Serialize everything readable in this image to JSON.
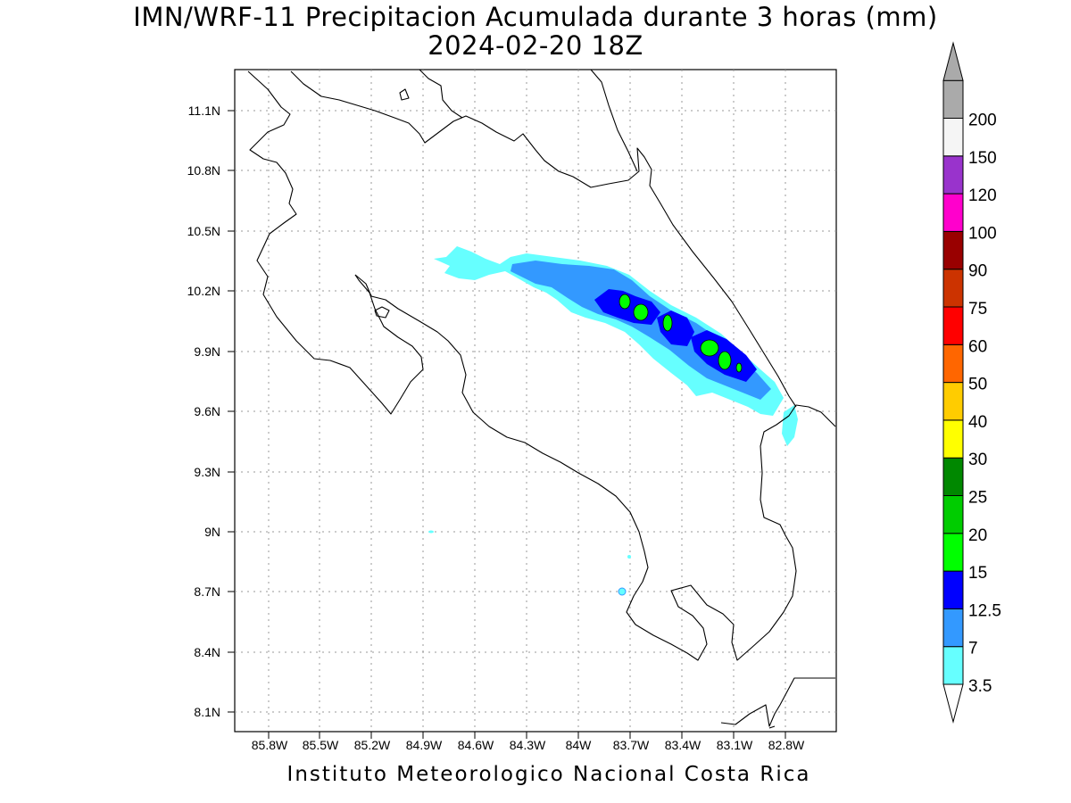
{
  "title_line1": "IMN/WRF-11 Precipitacion Acumulada durante 3 horas (mm)",
  "title_line2": "2024-02-20 18Z",
  "footer": "Instituto Meteorologico Nacional Costa Rica",
  "lat_labels": [
    "11.1N",
    "10.8N",
    "10.5N",
    "10.2N",
    "9.9N",
    "9.6N",
    "9.3N",
    "9N",
    "8.7N",
    "8.4N",
    "8.1N"
  ],
  "lon_labels": [
    "85.8W",
    "85.5W",
    "85.2W",
    "84.9W",
    "84.6W",
    "84.3W",
    "84W",
    "83.7W",
    "83.4W",
    "83.1W",
    "82.8W"
  ],
  "colorbar": {
    "labels": [
      "3.5",
      "7",
      "12.5",
      "15",
      "20",
      "25",
      "30",
      "40",
      "50",
      "60",
      "75",
      "90",
      "100",
      "120",
      "150",
      "200"
    ],
    "colors": [
      "#66ffff",
      "#3399ff",
      "#0000ff",
      "#00ff00",
      "#00cc00",
      "#008800",
      "#ffff00",
      "#ffcc00",
      "#ff6600",
      "#ff0000",
      "#cc3300",
      "#990000",
      "#ff00cc",
      "#9933cc",
      "#f5f5f5",
      "#aaaaaa"
    ]
  }
}
